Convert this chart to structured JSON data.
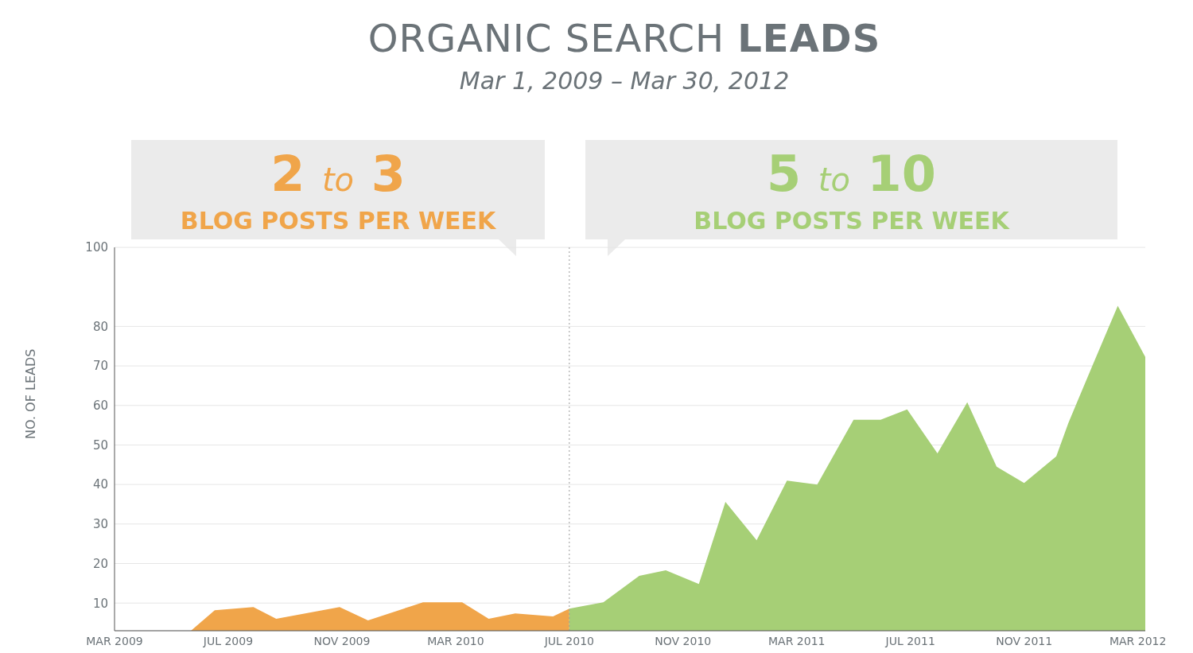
{
  "chart_data": {
    "type": "area",
    "title": "ORGANIC SEARCH LEADS",
    "subtitle": "Mar 1, 2009 – Mar 30, 2012",
    "ylabel": "NO. OF LEADS",
    "annotations": [
      "2 to 3",
      "BLOG POSTS PER WEEK",
      "5 to 10",
      "BLOG POSTS PER WEEK"
    ],
    "series": [
      {
        "color": "#f0a54a",
        "x": [
          "2009-05-22",
          "2009-06-17",
          "2009-07-28",
          "2009-08-22",
          "2009-10-29",
          "2009-11-29",
          "2010-01-27",
          "2010-03-08",
          "2010-04-06",
          "2010-05-04",
          "2010-06-14",
          "2010-07-01"
        ],
        "values": [
          3,
          8.2,
          9,
          6,
          9,
          5.6,
          10.2,
          10.2,
          6,
          7.4,
          6.6,
          8.6
        ]
      },
      {
        "color": "#a6cf76",
        "x": [
          "2010-07-01",
          "2010-08-07",
          "2010-09-15",
          "2010-10-13",
          "2010-11-18",
          "2010-12-16",
          "2011-01-19",
          "2011-02-21",
          "2011-03-23",
          "2011-05-01",
          "2011-05-30",
          "2011-06-28",
          "2011-07-30",
          "2011-09-01",
          "2011-10-02",
          "2011-11-01",
          "2011-12-05",
          "2011-12-18",
          "2012-01-13",
          "2012-02-10",
          "2012-03-09"
        ],
        "values": [
          8.6,
          10.2,
          16.9,
          18.3,
          14.8,
          35.6,
          25.9,
          41,
          40,
          56.4,
          56.4,
          59,
          47.9,
          60.8,
          44.5,
          40.4,
          47.1,
          55.6,
          69.9,
          85.2,
          72.3
        ]
      }
    ],
    "xlim": [
      "2009-03-01",
      "2012-03-09"
    ],
    "xticks": [
      {
        "value": "2009-03-01",
        "label": "MAR 2009"
      },
      {
        "value": "2009-07-01",
        "label": "JUL 2009"
      },
      {
        "value": "2009-11-01",
        "label": "NOV 2009"
      },
      {
        "value": "2010-03-01",
        "label": "MAR 2010"
      },
      {
        "value": "2010-07-01",
        "label": "JUL 2010"
      },
      {
        "value": "2010-11-01",
        "label": "NOV 2010"
      },
      {
        "value": "2011-03-01",
        "label": "MAR 2011"
      },
      {
        "value": "2011-07-01",
        "label": "JUL 2011"
      },
      {
        "value": "2011-11-01",
        "label": "NOV 2011"
      },
      {
        "value": "2012-03-01",
        "label": "MAR 2012"
      }
    ],
    "ylim": [
      3,
      100
    ],
    "yticks": [
      10,
      20,
      30,
      40,
      50,
      60,
      70,
      80,
      100
    ],
    "ref_lines": [
      {
        "axis": "x",
        "value": "2010-07-01",
        "color": "#9a9a9a",
        "line_style": "dotted"
      }
    ],
    "grid": "y",
    "legend": false
  }
}
